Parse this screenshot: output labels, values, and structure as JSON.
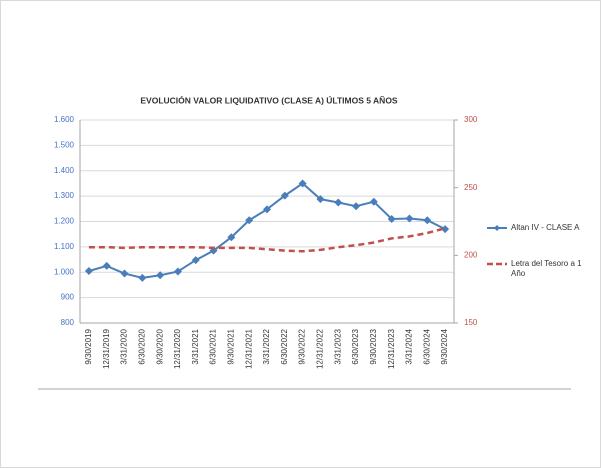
{
  "chart_data": {
    "type": "line",
    "title": "EVOLUCIÓN VALOR LIQUIDATIVO (CLASE A) ÚLTIMOS 5 AÑOS",
    "categories": [
      "9/30/2019",
      "12/31/2019",
      "3/31/2020",
      "6/30/2020",
      "9/30/2020",
      "12/31/2020",
      "3/31/2021",
      "6/30/2021",
      "9/30/2021",
      "12/31/2021",
      "3/31/2022",
      "6/30/2022",
      "9/30/2022",
      "12/31/2022",
      "3/31/2023",
      "6/30/2023",
      "9/30/2023",
      "12/31/2023",
      "3/31/2024",
      "6/30/2024",
      "9/30/2024"
    ],
    "series": [
      {
        "name": "Altan IV - CLASE A",
        "color": "#4a7ebb",
        "values": [
          1005,
          1025,
          995,
          978,
          988,
          1003,
          1048,
          1085,
          1138,
          1205,
          1248,
          1302,
          1350,
          1288,
          1275,
          1260,
          1278,
          1210,
          1212,
          1205,
          1170
        ]
      },
      {
        "name": "Letra del Tesoro a 1 Año",
        "color": "#c0504d",
        "axis": "y2",
        "values": [
          206,
          206,
          205.5,
          206,
          206,
          206,
          206,
          205.5,
          205.5,
          205.5,
          204.5,
          203.5,
          203,
          204,
          206,
          207.5,
          209.5,
          212.5,
          214,
          216.5,
          220
        ]
      }
    ],
    "ylim": [
      800,
      1600
    ],
    "yticks": [
      800,
      900,
      {
        "value": 1000,
        "label": "1.000"
      },
      {
        "value": 1100,
        "label": "1.100"
      },
      {
        "value": 1200,
        "label": "1.200"
      },
      {
        "value": 1300,
        "label": "1.300"
      },
      {
        "value": 1400,
        "label": "1.400"
      },
      {
        "value": 1500,
        "label": "1.500"
      },
      {
        "value": 1600,
        "label": "1.600"
      }
    ],
    "y2lim": [
      150,
      300
    ],
    "y2ticks": [
      150,
      200,
      250,
      300
    ],
    "grid": true,
    "legend": "right"
  }
}
